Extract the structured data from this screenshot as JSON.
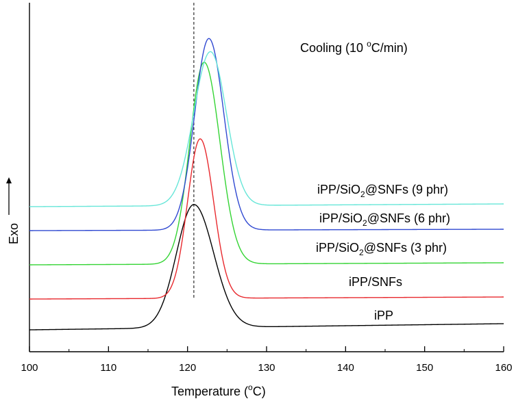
{
  "chart_data": {
    "type": "line",
    "title": "",
    "condition_label": {
      "main": "Cooling (10 ",
      "sup": "o",
      "rest": "C/min)"
    },
    "xlabel": {
      "main": "Temperature (",
      "sup": "o",
      "rest": "C)"
    },
    "ylabel": "Exo",
    "xlim": [
      100,
      160
    ],
    "xticks": [
      100,
      110,
      120,
      130,
      140,
      150,
      160
    ],
    "reference_line_x": 120.8,
    "series": [
      {
        "name": "iPP",
        "label_parts": [
          "iPP"
        ],
        "color": "#000000",
        "baseline_start": 0.0,
        "baseline_end": 0.09,
        "peak_x": 120.8,
        "peak_height": 1.8,
        "width_left": 2.2,
        "width_right": 2.5
      },
      {
        "name": "iPP/SNFs",
        "label_parts": [
          "iPP/SNFs"
        ],
        "color": "#e8282d",
        "baseline_start": 0.45,
        "baseline_end": 0.48,
        "peak_x": 121.6,
        "peak_height": 2.33,
        "width_left": 1.6,
        "width_right": 1.7
      },
      {
        "name": "iPP/SiO2@SNFs (3 phr)",
        "label_parts": [
          "iPP/SiO",
          "2",
          "@SNFs (3 phr)"
        ],
        "color": "#33d433",
        "baseline_start": 0.95,
        "baseline_end": 0.98,
        "peak_x": 122.1,
        "peak_height": 2.95,
        "width_left": 1.8,
        "width_right": 2.0
      },
      {
        "name": "iPP/SiO2@SNFs (6 phr)",
        "label_parts": [
          "iPP/SiO",
          "2",
          "@SNFs (6 phr)"
        ],
        "color": "#2f48d1",
        "baseline_start": 1.45,
        "baseline_end": 1.47,
        "peak_x": 122.7,
        "peak_height": 2.8,
        "width_left": 1.8,
        "width_right": 1.9
      },
      {
        "name": "iPP/SiO2@SNFs (9 phr)",
        "label_parts": [
          "iPP/SiO",
          "2",
          "@SNFs (9 phr)"
        ],
        "color": "#66e6d8",
        "baseline_start": 1.8,
        "baseline_end": 1.84,
        "peak_x": 122.9,
        "peak_height": 2.25,
        "width_left": 2.1,
        "width_right": 2.0
      }
    ]
  }
}
